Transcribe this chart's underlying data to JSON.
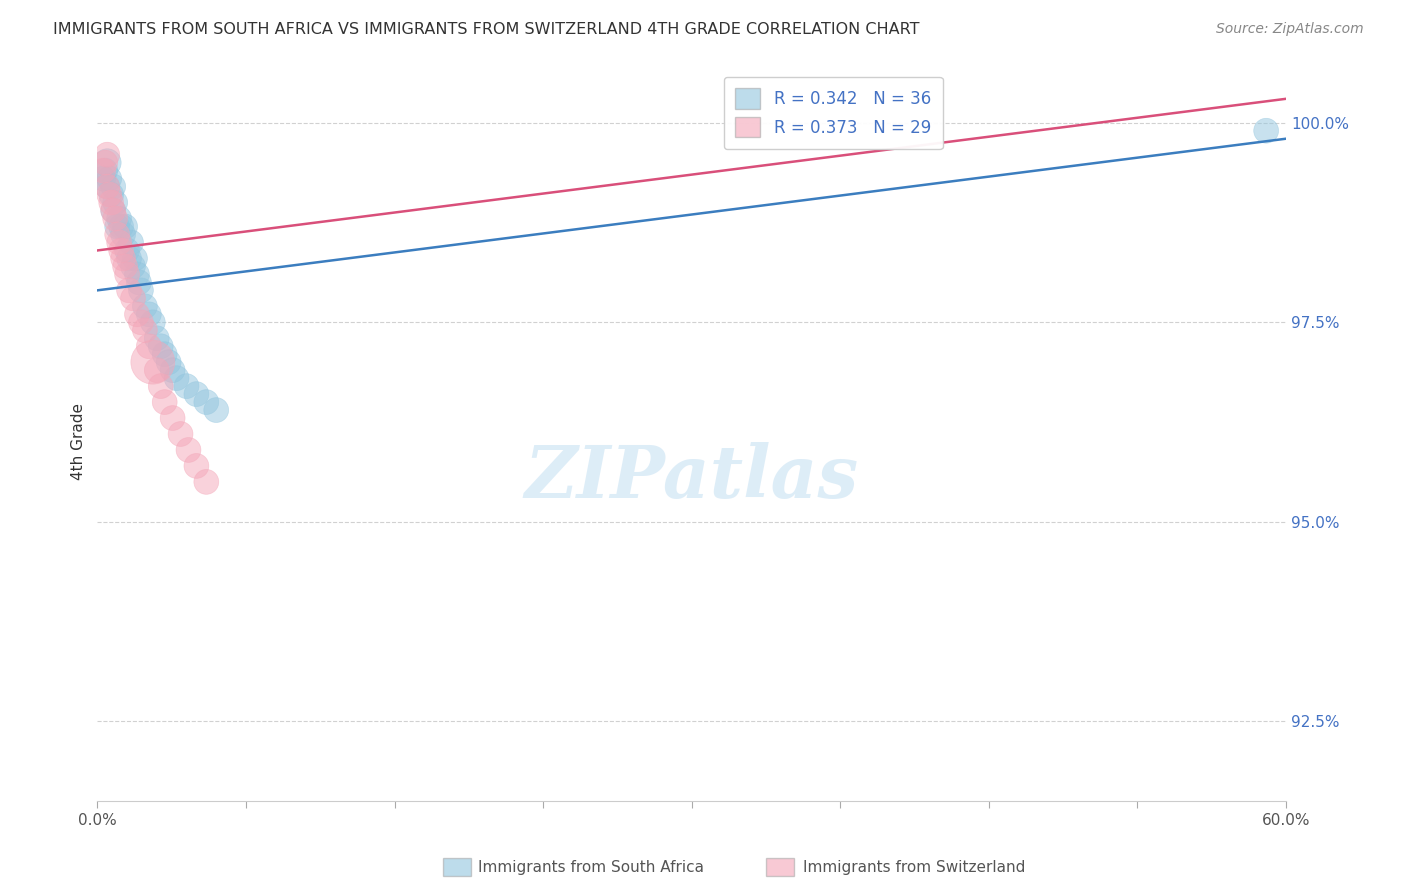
{
  "title": "IMMIGRANTS FROM SOUTH AFRICA VS IMMIGRANTS FROM SWITZERLAND 4TH GRADE CORRELATION CHART",
  "source": "Source: ZipAtlas.com",
  "ylabel": "4th Grade",
  "xmin": 0.0,
  "xmax": 0.6,
  "ymin": 0.915,
  "ymax": 1.005,
  "ytick_vals": [
    0.925,
    0.95,
    0.975,
    1.0
  ],
  "ytick_labels": [
    "92.5%",
    "95.0%",
    "97.5%",
    "100.0%"
  ],
  "blue_color": "#92c5de",
  "pink_color": "#f4a6b8",
  "blue_line_color": "#3b7dbf",
  "pink_line_color": "#d94f7a",
  "R_blue": "0.342",
  "N_blue": "36",
  "R_pink": "0.373",
  "N_pink": "29",
  "blue_x": [
    0.003,
    0.004,
    0.005,
    0.005,
    0.006,
    0.007,
    0.008,
    0.008,
    0.009,
    0.01,
    0.011,
    0.012,
    0.013,
    0.014,
    0.015,
    0.016,
    0.017,
    0.018,
    0.019,
    0.02,
    0.021,
    0.022,
    0.024,
    0.026,
    0.028,
    0.03,
    0.032,
    0.034,
    0.036,
    0.038,
    0.04,
    0.045,
    0.05,
    0.055,
    0.06,
    0.59
  ],
  "blue_y": [
    0.993,
    0.994,
    0.995,
    0.992,
    0.993,
    0.991,
    0.992,
    0.989,
    0.99,
    0.987,
    0.988,
    0.987,
    0.986,
    0.987,
    0.984,
    0.983,
    0.985,
    0.982,
    0.983,
    0.981,
    0.98,
    0.979,
    0.977,
    0.976,
    0.975,
    0.973,
    0.972,
    0.971,
    0.97,
    0.969,
    0.968,
    0.967,
    0.966,
    0.965,
    0.964,
    0.999
  ],
  "blue_sizes": [
    80,
    80,
    100,
    80,
    80,
    80,
    80,
    80,
    80,
    80,
    80,
    80,
    80,
    80,
    80,
    80,
    80,
    80,
    80,
    80,
    80,
    80,
    80,
    80,
    80,
    80,
    80,
    80,
    80,
    80,
    80,
    80,
    80,
    80,
    80,
    80
  ],
  "pink_x": [
    0.003,
    0.004,
    0.005,
    0.005,
    0.006,
    0.007,
    0.008,
    0.009,
    0.01,
    0.011,
    0.012,
    0.013,
    0.014,
    0.015,
    0.016,
    0.018,
    0.02,
    0.022,
    0.024,
    0.026,
    0.028,
    0.03,
    0.032,
    0.034,
    0.038,
    0.042,
    0.046,
    0.05,
    0.055
  ],
  "pink_y": [
    0.994,
    0.995,
    0.996,
    0.992,
    0.991,
    0.99,
    0.989,
    0.988,
    0.986,
    0.985,
    0.984,
    0.983,
    0.982,
    0.981,
    0.979,
    0.978,
    0.976,
    0.975,
    0.974,
    0.972,
    0.97,
    0.969,
    0.967,
    0.965,
    0.963,
    0.961,
    0.959,
    0.957,
    0.955
  ],
  "pink_sizes": [
    80,
    80,
    80,
    80,
    80,
    80,
    80,
    80,
    80,
    80,
    80,
    80,
    80,
    80,
    80,
    80,
    80,
    80,
    80,
    80,
    250,
    80,
    80,
    80,
    80,
    80,
    80,
    80,
    80
  ],
  "blue_line_x": [
    0.0,
    0.6
  ],
  "blue_line_y": [
    0.979,
    0.998
  ],
  "pink_line_x": [
    0.0,
    0.6
  ],
  "pink_line_y": [
    0.984,
    1.003
  ]
}
